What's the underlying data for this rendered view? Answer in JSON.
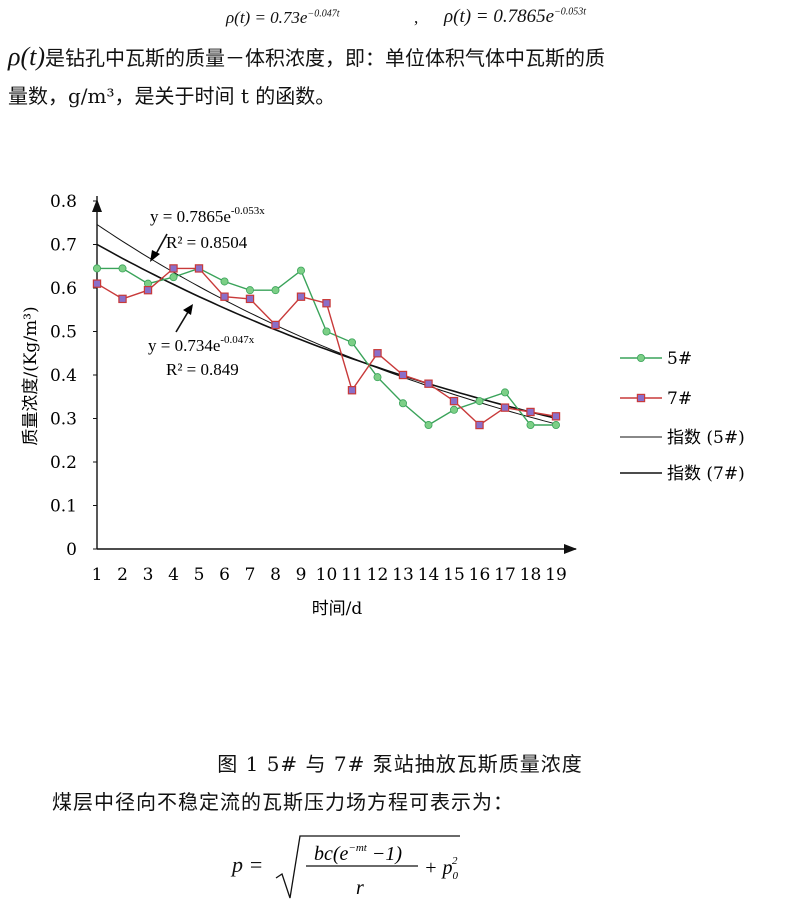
{
  "top_equations": {
    "left": "ρ(t) = 0.73e",
    "left_exp": "−0.047t",
    "sep": ",",
    "right": "ρ(t) = 0.7865e",
    "right_exp": "−0.053t"
  },
  "paragraph": {
    "rho": "ρ(t)",
    "line1": "是钻孔中瓦斯的质量－体积浓度，即：单位体积气体中瓦斯的质",
    "line2": "量数，g/m³，是关于时间 t 的函数。"
  },
  "chart_data": {
    "type": "line",
    "x": [
      1,
      2,
      3,
      4,
      5,
      6,
      7,
      8,
      9,
      10,
      11,
      12,
      13,
      14,
      15,
      16,
      17,
      18,
      19
    ],
    "xlabel": "时间/d",
    "ylabel": "质量浓度/(Kg/m³)",
    "ylim": [
      0,
      0.8
    ],
    "yticks": [
      "0",
      "0.1",
      "0.2",
      "0.3",
      "0.4",
      "0.5",
      "0.6",
      "0.7",
      "0.8"
    ],
    "grid": false,
    "legend_position": "right",
    "series": [
      {
        "name": "5#",
        "color": "#3aa35a",
        "marker": "circle",
        "values": [
          0.645,
          0.645,
          0.61,
          0.625,
          0.645,
          0.615,
          0.595,
          0.595,
          0.64,
          0.5,
          0.475,
          0.395,
          0.335,
          0.285,
          0.32,
          0.34,
          0.36,
          0.285,
          0.285
        ]
      },
      {
        "name": "7#",
        "color": "#c83a3a",
        "marker": "square",
        "values": [
          0.61,
          0.575,
          0.595,
          0.645,
          0.645,
          0.58,
          0.575,
          0.515,
          0.58,
          0.565,
          0.365,
          0.45,
          0.4,
          0.38,
          0.34,
          0.285,
          0.325,
          0.315,
          0.305
        ]
      },
      {
        "name": "指数 (5#)",
        "type": "trend",
        "a": 0.7865,
        "b": -0.053
      },
      {
        "name": "指数 (7#)",
        "type": "trend",
        "a": 0.734,
        "b": -0.047
      }
    ],
    "annotations": [
      {
        "eq": "y = 0.7865e",
        "exp": "-0.053x",
        "r2": "R² = 0.8504"
      },
      {
        "eq": "y = 0.734e",
        "exp": "-0.047x",
        "r2": "R² = 0.849"
      }
    ]
  },
  "caption": "图 1  5# 与 7# 泵站抽放瓦斯质量浓度",
  "line_after": "煤层中径向不稳定流的瓦斯压力场方程可表示为：",
  "formula": {
    "lhs": "p =",
    "numerator": "bc(e",
    "num_exp": "−mt",
    "num_tail": " −1)",
    "denominator": "r",
    "plus": "+ p",
    "p_sub": "0",
    "p_sup": "2"
  }
}
